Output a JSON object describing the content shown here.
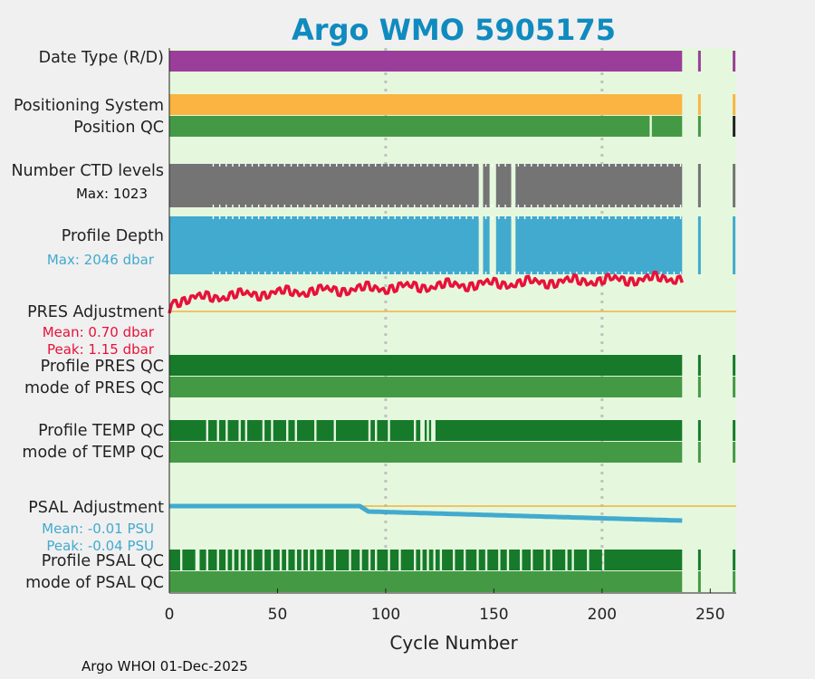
{
  "chart_data": {
    "type": "bar",
    "title": "Argo WMO 5905175",
    "xlabel": "Cycle Number",
    "xlim": [
      0,
      262
    ],
    "xticks": [
      "0",
      "50",
      "100",
      "150",
      "200",
      "250"
    ],
    "grid_x": [
      100,
      200
    ],
    "last_cycle_main": 237,
    "extra_cycles": [
      245,
      261
    ],
    "rows": [
      {
        "key": "date",
        "label": "Date Type (R/D)",
        "color": "#9b3d9a"
      },
      {
        "key": "pos",
        "label": "Positioning System",
        "color": "#fbb441"
      },
      {
        "key": "posqc",
        "label": "Position QC",
        "color": "#449a44",
        "gaps": [
          222
        ],
        "last_color": "#222222"
      },
      {
        "key": "ctd",
        "label": "Number CTD levels",
        "sublabel": "Max: 1023",
        "color": "#747474",
        "gaps": [
          143,
          144,
          148,
          149,
          150,
          158,
          159
        ]
      },
      {
        "key": "depth",
        "label": "Profile Depth",
        "sublabel": "Max: 2046 dbar",
        "color": "#42aace",
        "gaps": [
          143,
          144,
          148,
          149,
          150,
          158,
          159
        ]
      },
      {
        "key": "presadj",
        "label": "PRES Adjustment",
        "sublabel": "Mean: 0.70 dbar",
        "sublabel2": "Peak: 1.15 dbar",
        "color": "#e8113a",
        "mean": 0.7,
        "peak": 1.15
      },
      {
        "key": "prespqc",
        "label": "Profile PRES QC",
        "color": "#167a2a"
      },
      {
        "key": "presmqc",
        "label": "mode of PRES QC",
        "color": "#449a44"
      },
      {
        "key": "temppqc",
        "label": "Profile TEMP QC",
        "color": "#167a2a",
        "gaps": [
          17,
          22,
          26,
          32,
          35,
          43,
          47,
          54,
          58,
          67,
          76,
          92,
          95,
          101,
          113,
          116,
          117,
          119,
          121,
          122
        ]
      },
      {
        "key": "tempmqc",
        "label": "mode of TEMP QC",
        "color": "#449a44"
      },
      {
        "key": "psaladj",
        "label": "PSAL Adjustment",
        "sublabel": "Mean: -0.01 PSU",
        "sublabel2": "Peak: -0.04 PSU",
        "color": "#42aace",
        "mean": -0.01,
        "peak": -0.04
      },
      {
        "key": "psalpqc",
        "label": "Profile PSAL QC",
        "color": "#167a2a",
        "gaps": [
          5,
          12,
          13,
          17,
          22,
          26,
          29,
          32,
          35,
          38,
          43,
          47,
          51,
          54,
          58,
          61,
          64,
          67,
          71,
          76,
          83,
          88,
          92,
          95,
          101,
          106,
          113,
          116,
          119,
          122,
          125,
          131,
          136,
          142,
          146,
          152,
          156,
          162,
          167,
          173,
          176,
          183,
          186,
          193,
          200
        ]
      },
      {
        "key": "psalmqc",
        "label": "mode of PSAL QC",
        "color": "#449a44"
      }
    ],
    "footer": "Argo WHOI 01-Dec-2025"
  }
}
